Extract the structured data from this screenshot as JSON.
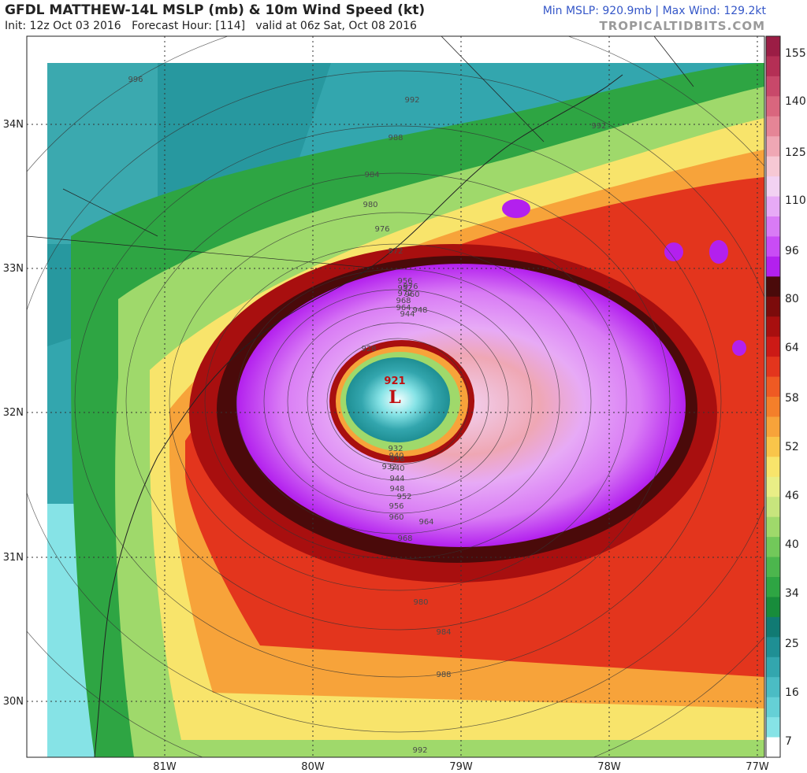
{
  "header": {
    "title": "GFDL MATTHEW-14L MSLP (mb) & 10m Wind Speed (kt)",
    "init": "Init: 12z Oct 03 2016",
    "forecast_hour": "Forecast Hour: [114]",
    "valid": "valid at 06z Sat, Oct 08 2016",
    "stats": "Min MSLP: 920.9mb | Max Wind: 129.2kt",
    "brand": "TROPICALTIDBITS.COM"
  },
  "map": {
    "lat_labels": [
      "34N",
      "33N",
      "32N",
      "31N",
      "30N"
    ],
    "lon_labels": [
      "81W",
      "80W",
      "79W",
      "78W",
      "77W"
    ],
    "lat_values": [
      34,
      33,
      32,
      31,
      30
    ],
    "lon_values": [
      -81,
      -80,
      -79,
      -78,
      -77
    ],
    "center": {
      "label": "L",
      "pressure": "921",
      "lat": 32.1,
      "lon": -79.5
    },
    "isobar_labels": [
      "996",
      "992",
      "992",
      "988",
      "984",
      "980",
      "976",
      "972",
      "968",
      "964",
      "960",
      "956",
      "952",
      "948",
      "944",
      "940",
      "936",
      "932",
      "928",
      "984",
      "988",
      "992",
      "980",
      "976",
      "972",
      "968",
      "964",
      "960",
      "956",
      "952",
      "948",
      "944",
      "940",
      "932"
    ]
  },
  "colorbar": {
    "labels": [
      "155",
      "140",
      "125",
      "110",
      "96",
      "80",
      "64",
      "58",
      "52",
      "46",
      "40",
      "34",
      "25",
      "16",
      "7"
    ],
    "colors": [
      "#9b1d45",
      "#b42f55",
      "#c8486a",
      "#d9667e",
      "#e58596",
      "#efa7b4",
      "#f6c8d4",
      "#f2d2f2",
      "#e7aaf6",
      "#d97bf5",
      "#c94cf5",
      "#b320ee",
      "#4a0a0a",
      "#7c0b0b",
      "#a80f0f",
      "#cc1a16",
      "#e3351d",
      "#ef5a23",
      "#f47f2a",
      "#f7a33a",
      "#f9c54a",
      "#f8e46b",
      "#e9ee86",
      "#c7e57d",
      "#9fd96b",
      "#72c85a",
      "#4cb64d",
      "#2ea543",
      "#188c3b",
      "#117a73",
      "#1f8f94",
      "#33a6ae",
      "#4bbcc4",
      "#65d0d6",
      "#86e3e6",
      "#ffffff"
    ]
  }
}
